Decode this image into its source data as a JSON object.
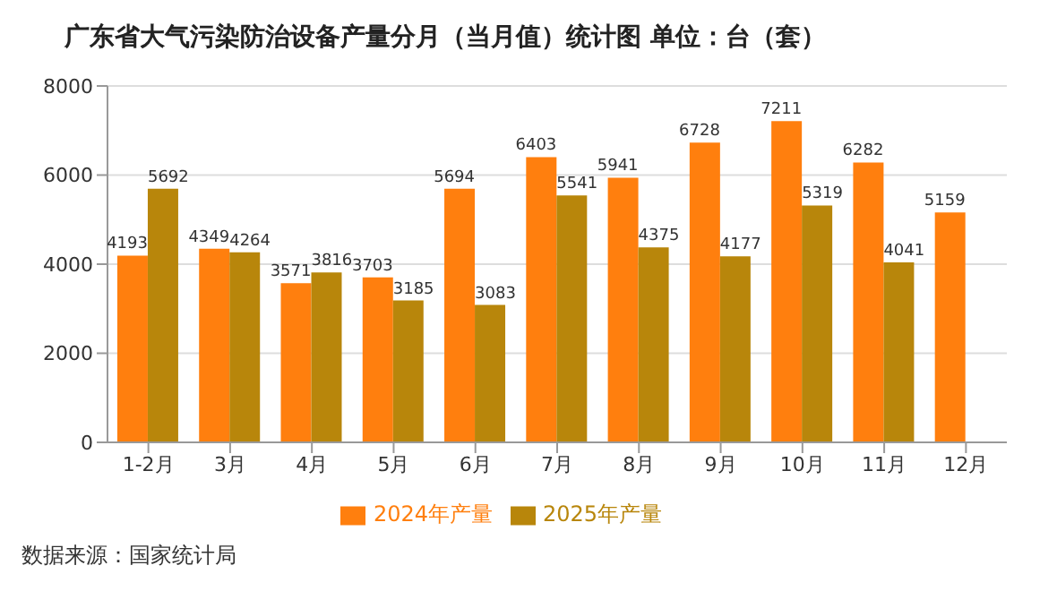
{
  "chart_data": {
    "type": "bar",
    "title": "广东省大气污染防治设备产量分月（当月值）统计图 单位：台（套）",
    "categories": [
      "1-2月",
      "3月",
      "4月",
      "5月",
      "6月",
      "7月",
      "8月",
      "9月",
      "10月",
      "11月",
      "12月"
    ],
    "series": [
      {
        "name": "2024年产量",
        "color": "#ff7f0e",
        "values": [
          4193,
          4349,
          3571,
          3703,
          5694,
          6403,
          5941,
          6728,
          7211,
          6282,
          5159
        ]
      },
      {
        "name": "2025年产量",
        "color": "#b8860b",
        "values": [
          5692,
          4264,
          3816,
          3185,
          3083,
          5541,
          4375,
          4177,
          5319,
          4041,
          null
        ]
      }
    ],
    "ylim": [
      0,
      8000
    ],
    "yticks": [
      0,
      2000,
      4000,
      6000,
      8000
    ],
    "grid": "y",
    "legend": "bottom",
    "data_labels": true,
    "annotations": [
      "数据来源：国家统计局"
    ]
  }
}
